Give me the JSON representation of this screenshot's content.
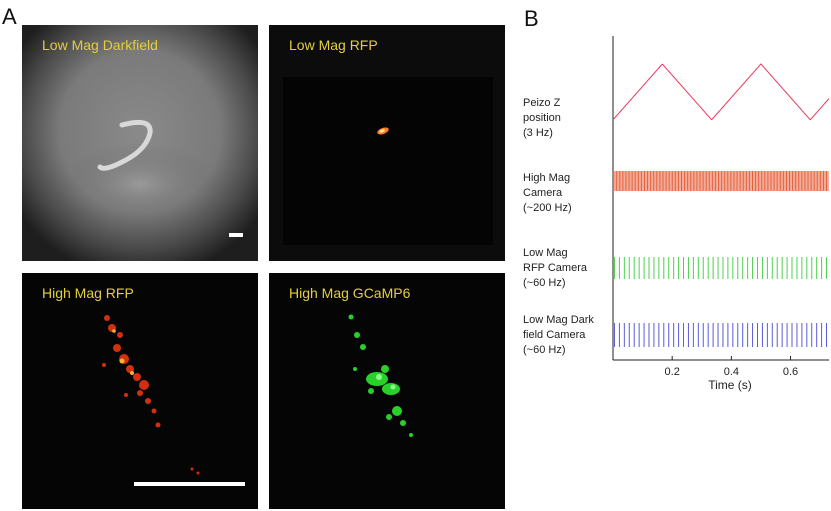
{
  "figure": {
    "panel_a_letter": "A",
    "panel_b_letter": "B"
  },
  "panels": {
    "low_mag_darkfield": {
      "title": "Low Mag Darkfield"
    },
    "low_mag_rfp": {
      "title": "Low Mag RFP"
    },
    "high_mag_rfp": {
      "title": "High Mag RFP"
    },
    "high_mag_gcamp6": {
      "title": "High Mag GCaMP6"
    }
  },
  "chart_data": {
    "type": "line",
    "xlabel": "Time (s)",
    "xlim": [
      0,
      0.73
    ],
    "xticks": [
      0.2,
      0.4,
      0.6
    ],
    "xtick_labels": [
      "0.2",
      "0.4",
      "0.6"
    ],
    "traces": [
      {
        "id": "piezo",
        "label_lines": [
          "Peizo Z",
          "position",
          "(3 Hz)"
        ],
        "kind": "triangle",
        "frequency_hz": 3,
        "color": "#e8395a"
      },
      {
        "id": "high_mag_camera",
        "label_lines": [
          "High Mag",
          "Camera",
          "(~200 Hz)"
        ],
        "kind": "pulses",
        "frequency_hz": 200,
        "color": "#e8603a"
      },
      {
        "id": "low_mag_rfp_camera",
        "label_lines": [
          "Low Mag",
          "RFP Camera",
          "(~60 Hz)"
        ],
        "kind": "pulses",
        "frequency_hz": 60,
        "color": "#4fd04f"
      },
      {
        "id": "low_mag_darkfield_camera",
        "label_lines": [
          "Low Mag Dark",
          "field Camera",
          "(~60 Hz)"
        ],
        "kind": "pulses",
        "frequency_hz": 60,
        "color": "#5b5bd8"
      }
    ]
  }
}
